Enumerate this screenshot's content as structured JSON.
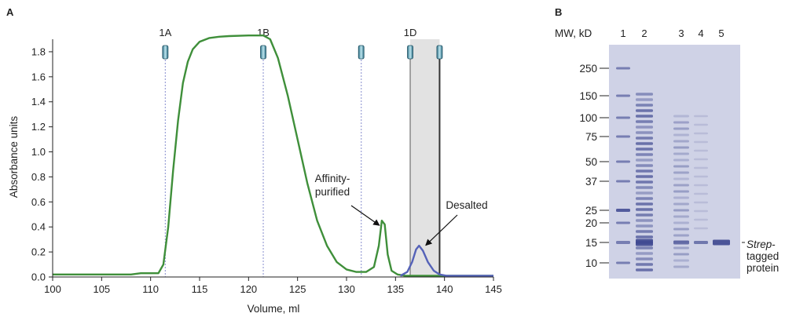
{
  "panel_a": {
    "label": "A",
    "chart_data": {
      "type": "line",
      "title": "",
      "xlabel": "Volume, ml",
      "ylabel": "Absorbance units",
      "xlim": [
        100,
        145
      ],
      "ylim": [
        0,
        1.9
      ],
      "xticks": [
        100,
        105,
        110,
        115,
        120,
        125,
        130,
        135,
        140,
        145
      ],
      "yticks": [
        0.0,
        0.2,
        0.4,
        0.6,
        0.8,
        1.0,
        1.2,
        1.4,
        1.6,
        1.8
      ],
      "ytick_labels": [
        "0.0",
        "0.2",
        "0.4",
        "0.6",
        "0.8",
        "1.0",
        "1.2",
        "1.4",
        "1.6",
        "1.8"
      ],
      "series": [
        {
          "color": "#3f8f3a",
          "x": [
            100,
            108,
            109,
            110.8,
            111.3,
            111.8,
            112.3,
            112.8,
            113.3,
            113.8,
            114.3,
            115,
            116,
            117,
            118,
            120,
            121.5,
            122.2,
            123,
            124,
            125,
            126,
            127,
            128,
            129,
            130,
            131,
            132,
            132.8,
            133.3,
            133.6,
            133.9,
            134.2,
            134.6,
            135.2,
            136,
            145
          ],
          "y": [
            0.02,
            0.02,
            0.03,
            0.03,
            0.1,
            0.4,
            0.85,
            1.25,
            1.55,
            1.72,
            1.82,
            1.88,
            1.91,
            1.92,
            1.925,
            1.93,
            1.93,
            1.9,
            1.75,
            1.45,
            1.1,
            0.75,
            0.45,
            0.25,
            0.12,
            0.06,
            0.04,
            0.04,
            0.08,
            0.25,
            0.45,
            0.42,
            0.18,
            0.05,
            0.02,
            0.01,
            0.01
          ]
        },
        {
          "color": "#5562b8",
          "x": [
            135.5,
            136.2,
            136.7,
            137.1,
            137.4,
            137.8,
            138.3,
            138.9,
            139.5,
            140.2,
            145
          ],
          "y": [
            0.01,
            0.04,
            0.12,
            0.22,
            0.25,
            0.21,
            0.12,
            0.05,
            0.02,
            0.01,
            0.01
          ]
        }
      ],
      "fraction_markers": [
        {
          "x": 111.5,
          "label": "1A"
        },
        {
          "x": 121.5,
          "label": "1B"
        },
        {
          "x": 131.5,
          "label": ""
        },
        {
          "x": 136.5,
          "label": "1D"
        },
        {
          "x": 139.5,
          "label": ""
        }
      ],
      "shaded_region": [
        136.5,
        139.5
      ],
      "annotations": [
        {
          "text_lines": [
            "Affinity-",
            "purified"
          ],
          "target_x": 133.6,
          "target_y": 0.45
        },
        {
          "text_lines": [
            "Desalted"
          ],
          "target_x": 137.6,
          "target_y": 0.24
        }
      ],
      "grid": false,
      "legend": "none"
    }
  },
  "panel_b": {
    "label": "B",
    "mw_header": "MW, kD",
    "lanes": [
      "1",
      "2",
      "3",
      "4",
      "5"
    ],
    "markers": [
      "250",
      "150",
      "100",
      "75",
      "50",
      "37",
      "25",
      "20",
      "15",
      "10"
    ],
    "band_label": {
      "italic": "Strep",
      "rest_line1": "-",
      "line2": "tagged",
      "line3": "protein"
    },
    "colors": {
      "gel_background": "#cfd2e6",
      "band": "#3c468f"
    }
  }
}
